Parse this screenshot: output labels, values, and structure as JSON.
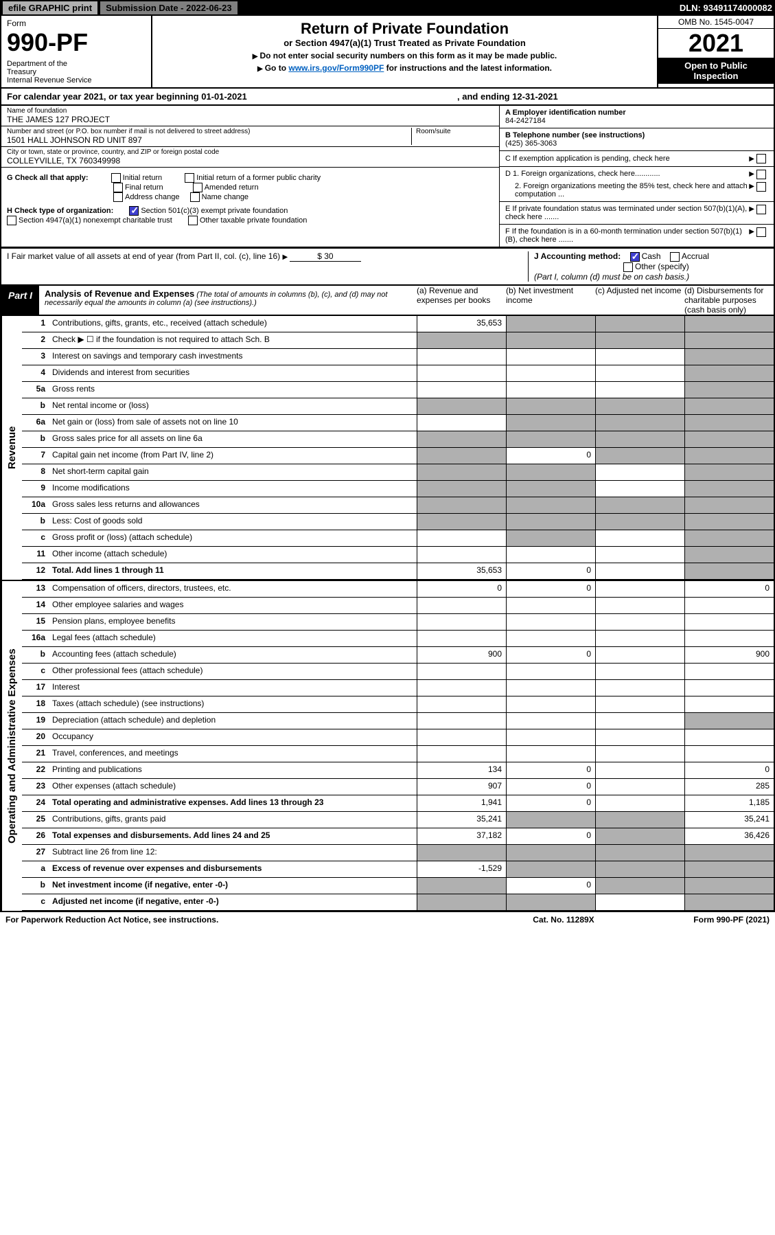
{
  "topbar": {
    "efile": "efile GRAPHIC print",
    "subdate": "Submission Date - 2022-06-23",
    "dln": "DLN: 93491174000082"
  },
  "header": {
    "form_word": "Form",
    "form_num": "990-PF",
    "dept": "Department of the Treasury\nInternal Revenue Service",
    "title": "Return of Private Foundation",
    "sub": "or Section 4947(a)(1) Trust Treated as Private Foundation",
    "note1": "Do not enter social security numbers on this form as it may be made public.",
    "note2_pre": "Go to ",
    "note2_link": "www.irs.gov/Form990PF",
    "note2_post": " for instructions and the latest information.",
    "omb": "OMB No. 1545-0047",
    "year": "2021",
    "open": "Open to Public Inspection"
  },
  "calyear": {
    "text1": "For calendar year 2021, or tax year beginning 01-01-2021",
    "text2": ", and ending 12-31-2021"
  },
  "ident": {
    "name_lbl": "Name of foundation",
    "name_val": "THE JAMES 127 PROJECT",
    "addr_lbl": "Number and street (or P.O. box number if mail is not delivered to street address)",
    "addr_val": "1501 HALL JOHNSON RD UNIT 897",
    "room_lbl": "Room/suite",
    "city_lbl": "City or town, state or province, country, and ZIP or foreign postal code",
    "city_val": "COLLEYVILLE, TX  760349998",
    "a_lbl": "A Employer identification number",
    "a_val": "84-2427184",
    "b_lbl": "B Telephone number (see instructions)",
    "b_val": "(425) 365-3063",
    "c_lbl": "C If exemption application is pending, check here",
    "d1_lbl": "D 1. Foreign organizations, check here............",
    "d2_lbl": "2. Foreign organizations meeting the 85% test, check here and attach computation ...",
    "e_lbl": "E  If private foundation status was terminated under section 507(b)(1)(A), check here .......",
    "f_lbl": "F  If the foundation is in a 60-month termination under section 507(b)(1)(B), check here .......",
    "g_lbl": "G Check all that apply:",
    "g_initial": "Initial return",
    "g_final": "Final return",
    "g_addr": "Address change",
    "g_initial_former": "Initial return of a former public charity",
    "g_amended": "Amended return",
    "g_name": "Name change",
    "h_lbl": "H Check type of organization:",
    "h_501c3": "Section 501(c)(3) exempt private foundation",
    "h_4947": "Section 4947(a)(1) nonexempt charitable trust",
    "h_other": "Other taxable private foundation",
    "i_lbl": "I Fair market value of all assets at end of year (from Part II, col. (c), line 16)",
    "i_val": "$  30",
    "j_lbl": "J Accounting method:",
    "j_cash": "Cash",
    "j_accrual": "Accrual",
    "j_other": "Other (specify)",
    "j_note": "(Part I, column (d) must be on cash basis.)"
  },
  "part1": {
    "label": "Part I",
    "title": "Analysis of Revenue and Expenses",
    "note": "(The total of amounts in columns (b), (c), and (d) may not necessarily equal the amounts in column (a) (see instructions).)",
    "col_a": "(a)   Revenue and expenses per books",
    "col_b": "(b)   Net investment income",
    "col_c": "(c)   Adjusted net income",
    "col_d": "(d)   Disbursements for charitable purposes (cash basis only)"
  },
  "side_labels": {
    "revenue": "Revenue",
    "expenses": "Operating and Administrative Expenses"
  },
  "rows": [
    {
      "n": "1",
      "d": "Contributions, gifts, grants, etc., received (attach schedule)",
      "a": "35,653",
      "bs": true,
      "cs": true,
      "ds": true
    },
    {
      "n": "2",
      "d": "Check ▶ ☐ if the foundation is not required to attach Sch. B",
      "as": true,
      "bs": true,
      "cs": true,
      "ds": true
    },
    {
      "n": "3",
      "d": "Interest on savings and temporary cash investments",
      "ds": true
    },
    {
      "n": "4",
      "d": "Dividends and interest from securities",
      "ds": true
    },
    {
      "n": "5a",
      "d": "Gross rents",
      "ds": true
    },
    {
      "n": "b",
      "d": "Net rental income or (loss)",
      "as": true,
      "bs": true,
      "cs": true,
      "ds": true
    },
    {
      "n": "6a",
      "d": "Net gain or (loss) from sale of assets not on line 10",
      "bs": true,
      "cs": true,
      "ds": true
    },
    {
      "n": "b",
      "d": "Gross sales price for all assets on line 6a",
      "as": true,
      "bs": true,
      "cs": true,
      "ds": true
    },
    {
      "n": "7",
      "d": "Capital gain net income (from Part IV, line 2)",
      "as": true,
      "b": "0",
      "cs": true,
      "ds": true
    },
    {
      "n": "8",
      "d": "Net short-term capital gain",
      "as": true,
      "bs": true,
      "ds": true
    },
    {
      "n": "9",
      "d": "Income modifications",
      "as": true,
      "bs": true,
      "ds": true
    },
    {
      "n": "10a",
      "d": "Gross sales less returns and allowances",
      "as": true,
      "bs": true,
      "cs": true,
      "ds": true
    },
    {
      "n": "b",
      "d": "Less: Cost of goods sold",
      "as": true,
      "bs": true,
      "cs": true,
      "ds": true
    },
    {
      "n": "c",
      "d": "Gross profit or (loss) (attach schedule)",
      "bs": true,
      "ds": true
    },
    {
      "n": "11",
      "d": "Other income (attach schedule)",
      "ds": true
    },
    {
      "n": "12",
      "d": "Total. Add lines 1 through 11",
      "bold": true,
      "a": "35,653",
      "b": "0",
      "ds": true
    }
  ],
  "exp_rows": [
    {
      "n": "13",
      "d": "Compensation of officers, directors, trustees, etc.",
      "a": "0",
      "b": "0",
      "dd": "0"
    },
    {
      "n": "14",
      "d": "Other employee salaries and wages"
    },
    {
      "n": "15",
      "d": "Pension plans, employee benefits"
    },
    {
      "n": "16a",
      "d": "Legal fees (attach schedule)"
    },
    {
      "n": "b",
      "d": "Accounting fees (attach schedule)",
      "a": "900",
      "b": "0",
      "dd": "900"
    },
    {
      "n": "c",
      "d": "Other professional fees (attach schedule)"
    },
    {
      "n": "17",
      "d": "Interest"
    },
    {
      "n": "18",
      "d": "Taxes (attach schedule) (see instructions)"
    },
    {
      "n": "19",
      "d": "Depreciation (attach schedule) and depletion",
      "ds": true
    },
    {
      "n": "20",
      "d": "Occupancy"
    },
    {
      "n": "21",
      "d": "Travel, conferences, and meetings"
    },
    {
      "n": "22",
      "d": "Printing and publications",
      "a": "134",
      "b": "0",
      "dd": "0"
    },
    {
      "n": "23",
      "d": "Other expenses (attach schedule)",
      "a": "907",
      "b": "0",
      "dd": "285"
    },
    {
      "n": "24",
      "d": "Total operating and administrative expenses. Add lines 13 through 23",
      "bold": true,
      "a": "1,941",
      "b": "0",
      "dd": "1,185"
    },
    {
      "n": "25",
      "d": "Contributions, gifts, grants paid",
      "a": "35,241",
      "bs": true,
      "cs": true,
      "dd": "35,241"
    },
    {
      "n": "26",
      "d": "Total expenses and disbursements. Add lines 24 and 25",
      "bold": true,
      "a": "37,182",
      "b": "0",
      "cs": true,
      "dd": "36,426"
    },
    {
      "n": "27",
      "d": "Subtract line 26 from line 12:",
      "as": true,
      "bs": true,
      "cs": true,
      "ds": true
    },
    {
      "n": "a",
      "d": "Excess of revenue over expenses and disbursements",
      "bold": true,
      "a": "-1,529",
      "bs": true,
      "cs": true,
      "ds": true
    },
    {
      "n": "b",
      "d": "Net investment income (if negative, enter -0-)",
      "bold": true,
      "as": true,
      "b": "0",
      "cs": true,
      "ds": true
    },
    {
      "n": "c",
      "d": "Adjusted net income (if negative, enter -0-)",
      "bold": true,
      "as": true,
      "bs": true,
      "ds": true
    }
  ],
  "footer": {
    "f1": "For Paperwork Reduction Act Notice, see instructions.",
    "f2": "Cat. No. 11289X",
    "f3": "Form 990-PF (2021)"
  }
}
